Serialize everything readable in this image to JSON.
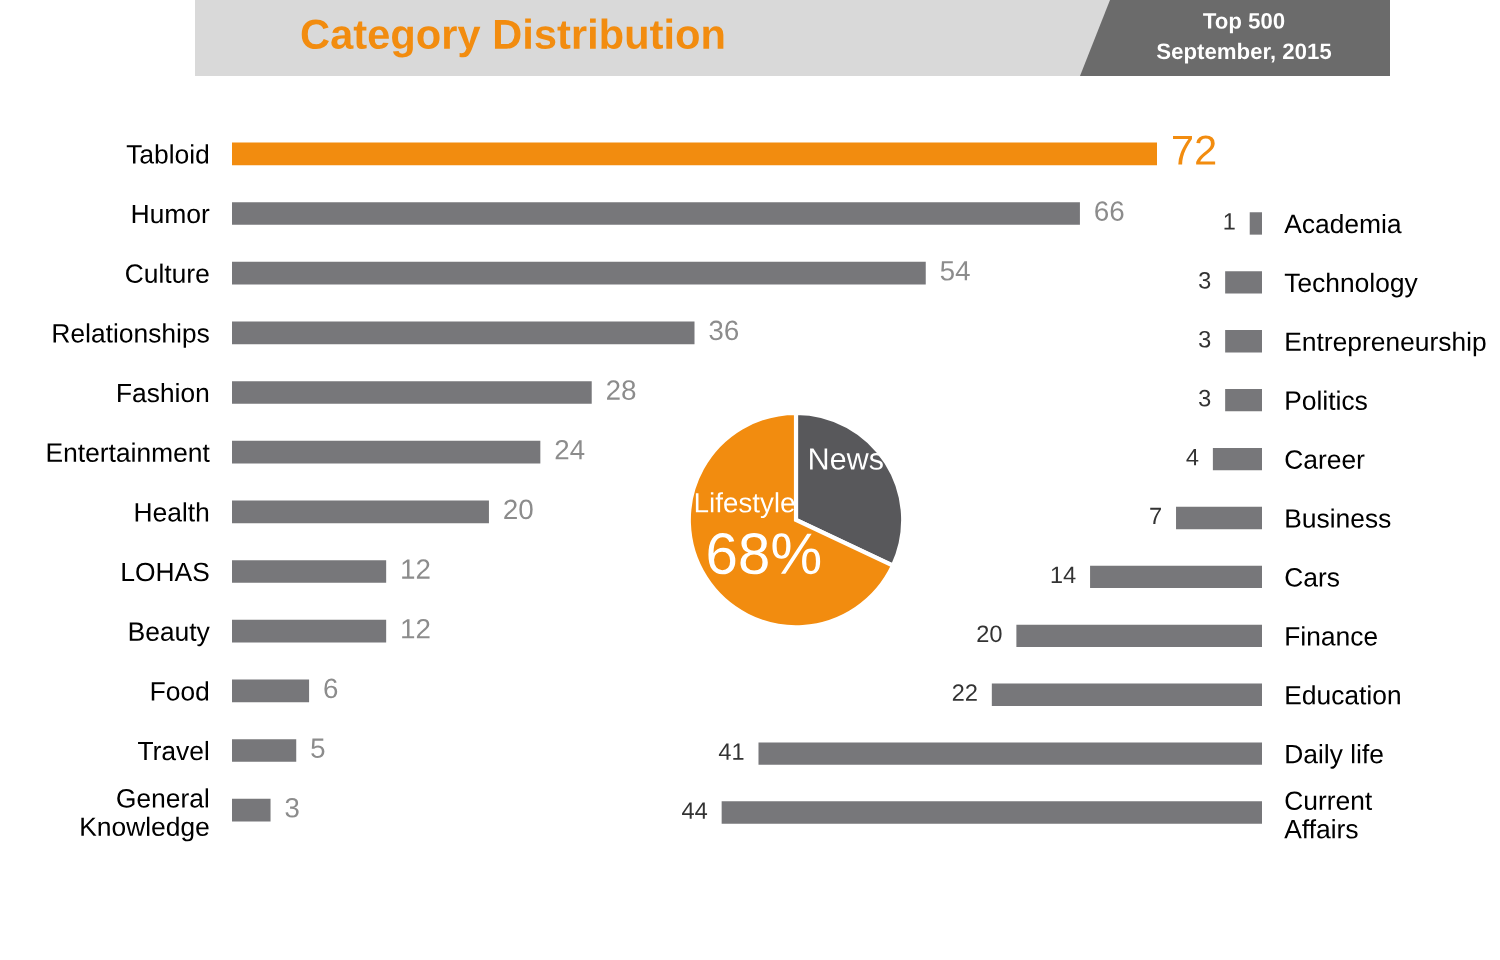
{
  "chart_data": [
    {
      "type": "bar",
      "orientation": "horizontal",
      "title": "Category Distribution",
      "subtitle": "Top 500\nSeptember, 2015",
      "categories": [
        "Tabloid",
        "Humor",
        "Culture",
        "Relationships",
        "Fashion",
        "Entertainment",
        "Health",
        "LOHAS",
        "Beauty",
        "Food",
        "Travel",
        "General\nKnowledge"
      ],
      "values": [
        72,
        66,
        54,
        36,
        28,
        24,
        20,
        12,
        12,
        6,
        5,
        3
      ],
      "colors": [
        "#f28c0f",
        "#77777a",
        "#77777a",
        "#77777a",
        "#77777a",
        "#77777a",
        "#77777a",
        "#77777a",
        "#77777a",
        "#77777a",
        "#77777a",
        "#77777a"
      ],
      "tick_labels": "y",
      "data_labels": true
    },
    {
      "type": "pie",
      "categories": [
        "News",
        "Lifestyle"
      ],
      "values": [
        32,
        68
      ],
      "colors": [
        "#58585b",
        "#f28c0f"
      ],
      "value_labels": [
        null,
        "68%"
      ]
    },
    {
      "type": "bar",
      "orientation": "horizontal",
      "categories": [
        "Academia",
        "Technology",
        "Entrepreneurship",
        "Politics",
        "Career",
        "Business",
        "Cars",
        "Finance",
        "Education",
        "Daily life",
        "Current\nAffairs"
      ],
      "values": [
        1,
        3,
        3,
        3,
        4,
        7,
        14,
        20,
        22,
        41,
        44
      ],
      "colors": [
        "#77777a",
        "#77777a",
        "#77777a",
        "#77777a",
        "#77777a",
        "#77777a",
        "#77777a",
        "#77777a",
        "#77777a",
        "#77777a",
        "#77777a"
      ],
      "tick_labels": "y",
      "data_labels": true
    }
  ]
}
